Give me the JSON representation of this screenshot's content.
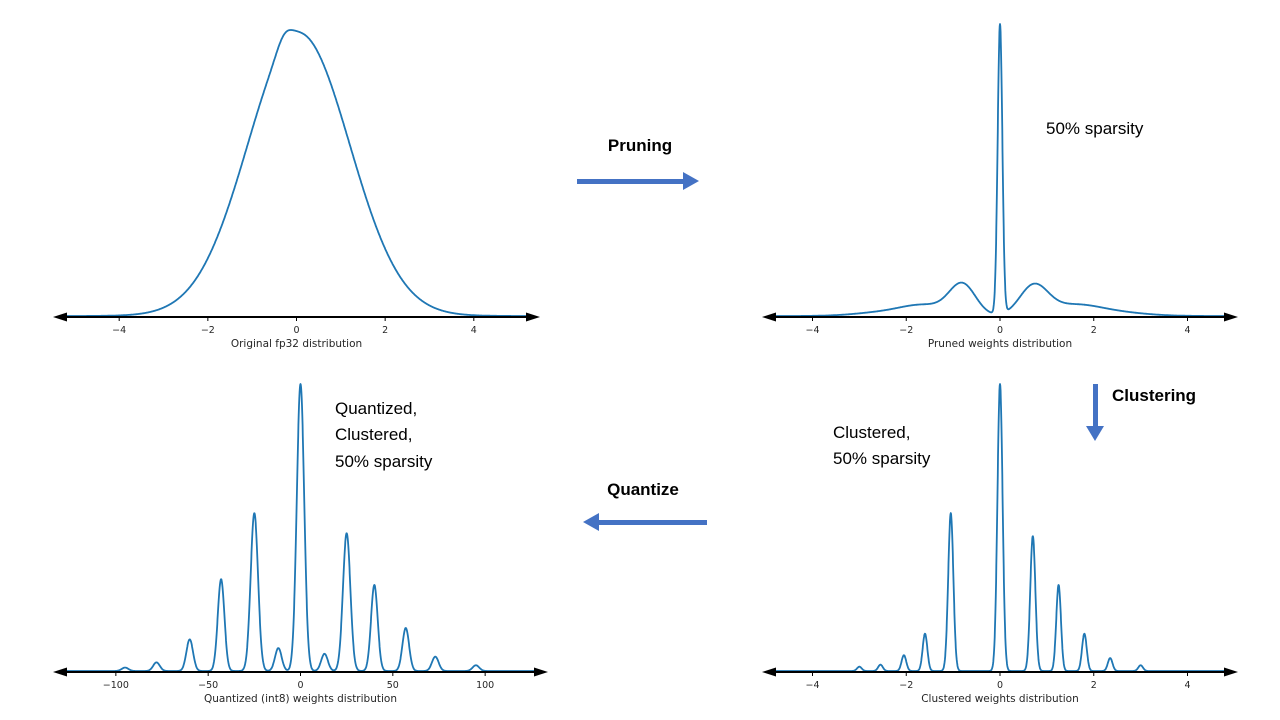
{
  "colors": {
    "curve": "#1f77b4",
    "arrow": "#4472c4",
    "axis": "#000000",
    "tick_text": "#262626"
  },
  "arrows": {
    "pruning_label": "Pruning",
    "clustering_label": "Clustering",
    "quantize_label": "Quantize"
  },
  "annotations": {
    "pruned": "50% sparsity",
    "clustered": "Clustered,\n50% sparsity",
    "quantized": "Quantized,\nClustered,\n50% sparsity"
  },
  "chart_data": [
    {
      "id": "original",
      "type": "line",
      "title": "",
      "xlabel": "Original fp32 distribution",
      "ylabel": "",
      "xlim": [
        -5.2,
        5.2
      ],
      "grid": false,
      "legend": null,
      "ticks": [
        {
          "x": -4,
          "label": "−4"
        },
        {
          "x": -2,
          "label": "−2"
        },
        {
          "x": 0,
          "label": "0"
        },
        {
          "x": 2,
          "label": "2"
        },
        {
          "x": 4,
          "label": "4"
        }
      ],
      "components": [
        {
          "mu": 0.05,
          "sigma": 1.15,
          "amp": 1.0
        },
        {
          "mu": -0.28,
          "sigma": 0.16,
          "amp": 0.035
        }
      ]
    },
    {
      "id": "pruned",
      "type": "line",
      "title": "",
      "xlabel": "Pruned weights distribution",
      "ylabel": "",
      "xlim": [
        -4.8,
        4.8
      ],
      "grid": false,
      "legend": null,
      "ticks": [
        {
          "x": -4,
          "label": "−4"
        },
        {
          "x": -2,
          "label": "−2"
        },
        {
          "x": 0,
          "label": "0"
        },
        {
          "x": 2,
          "label": "2"
        },
        {
          "x": 4,
          "label": "4"
        }
      ],
      "components": [
        {
          "mu": 0,
          "sigma": 0.05,
          "amp": 1.0
        },
        {
          "mu": -0.8,
          "sigma": 0.28,
          "amp": 0.105
        },
        {
          "mu": 0.72,
          "sigma": 0.3,
          "amp": 0.1
        },
        {
          "mu": -1.6,
          "sigma": 0.5,
          "amp": 0.035
        },
        {
          "mu": 1.55,
          "sigma": 0.55,
          "amp": 0.035
        },
        {
          "mu": -2.5,
          "sigma": 0.6,
          "amp": 0.012
        },
        {
          "mu": 2.45,
          "sigma": 0.65,
          "amp": 0.012
        }
      ]
    },
    {
      "id": "clustered",
      "type": "line",
      "title": "",
      "xlabel": "Clustered weights distribution",
      "ylabel": "",
      "xlim": [
        -4.8,
        4.8
      ],
      "grid": false,
      "legend": null,
      "ticks": [
        {
          "x": -4,
          "label": "−4"
        },
        {
          "x": -2,
          "label": "−2"
        },
        {
          "x": 0,
          "label": "0"
        },
        {
          "x": 2,
          "label": "2"
        },
        {
          "x": 4,
          "label": "4"
        }
      ],
      "components": [
        {
          "mu": -3.0,
          "sigma": 0.05,
          "amp": 0.015
        },
        {
          "mu": -2.55,
          "sigma": 0.05,
          "amp": 0.022
        },
        {
          "mu": -2.05,
          "sigma": 0.05,
          "amp": 0.055
        },
        {
          "mu": -1.6,
          "sigma": 0.05,
          "amp": 0.13
        },
        {
          "mu": -1.05,
          "sigma": 0.055,
          "amp": 0.55
        },
        {
          "mu": 0,
          "sigma": 0.055,
          "amp": 1.0
        },
        {
          "mu": 0.7,
          "sigma": 0.055,
          "amp": 0.47
        },
        {
          "mu": 1.25,
          "sigma": 0.05,
          "amp": 0.3
        },
        {
          "mu": 1.8,
          "sigma": 0.05,
          "amp": 0.13
        },
        {
          "mu": 2.35,
          "sigma": 0.05,
          "amp": 0.045
        },
        {
          "mu": 3.0,
          "sigma": 0.05,
          "amp": 0.02
        }
      ]
    },
    {
      "id": "quantized",
      "type": "line",
      "title": "",
      "xlabel": "Quantized (int8) weights distribution",
      "ylabel": "",
      "xlim": [
        -127,
        127
      ],
      "grid": false,
      "legend": null,
      "ticks": [
        {
          "x": -100,
          "label": "−100"
        },
        {
          "x": -50,
          "label": "−50"
        },
        {
          "x": 0,
          "label": "0"
        },
        {
          "x": 50,
          "label": "50"
        },
        {
          "x": 100,
          "label": "100"
        }
      ],
      "components": [
        {
          "mu": -95,
          "sigma": 1.8,
          "amp": 0.012
        },
        {
          "mu": -78,
          "sigma": 1.8,
          "amp": 0.03
        },
        {
          "mu": -60,
          "sigma": 1.8,
          "amp": 0.11
        },
        {
          "mu": -43,
          "sigma": 1.8,
          "amp": 0.32
        },
        {
          "mu": -25,
          "sigma": 2.0,
          "amp": 0.55
        },
        {
          "mu": -12,
          "sigma": 1.8,
          "amp": 0.08
        },
        {
          "mu": 0,
          "sigma": 2.0,
          "amp": 1.0
        },
        {
          "mu": 13,
          "sigma": 1.8,
          "amp": 0.06
        },
        {
          "mu": 25,
          "sigma": 2.0,
          "amp": 0.48
        },
        {
          "mu": 40,
          "sigma": 1.8,
          "amp": 0.3
        },
        {
          "mu": 57,
          "sigma": 1.8,
          "amp": 0.15
        },
        {
          "mu": 73,
          "sigma": 1.8,
          "amp": 0.05
        },
        {
          "mu": 95,
          "sigma": 1.8,
          "amp": 0.02
        }
      ]
    }
  ]
}
